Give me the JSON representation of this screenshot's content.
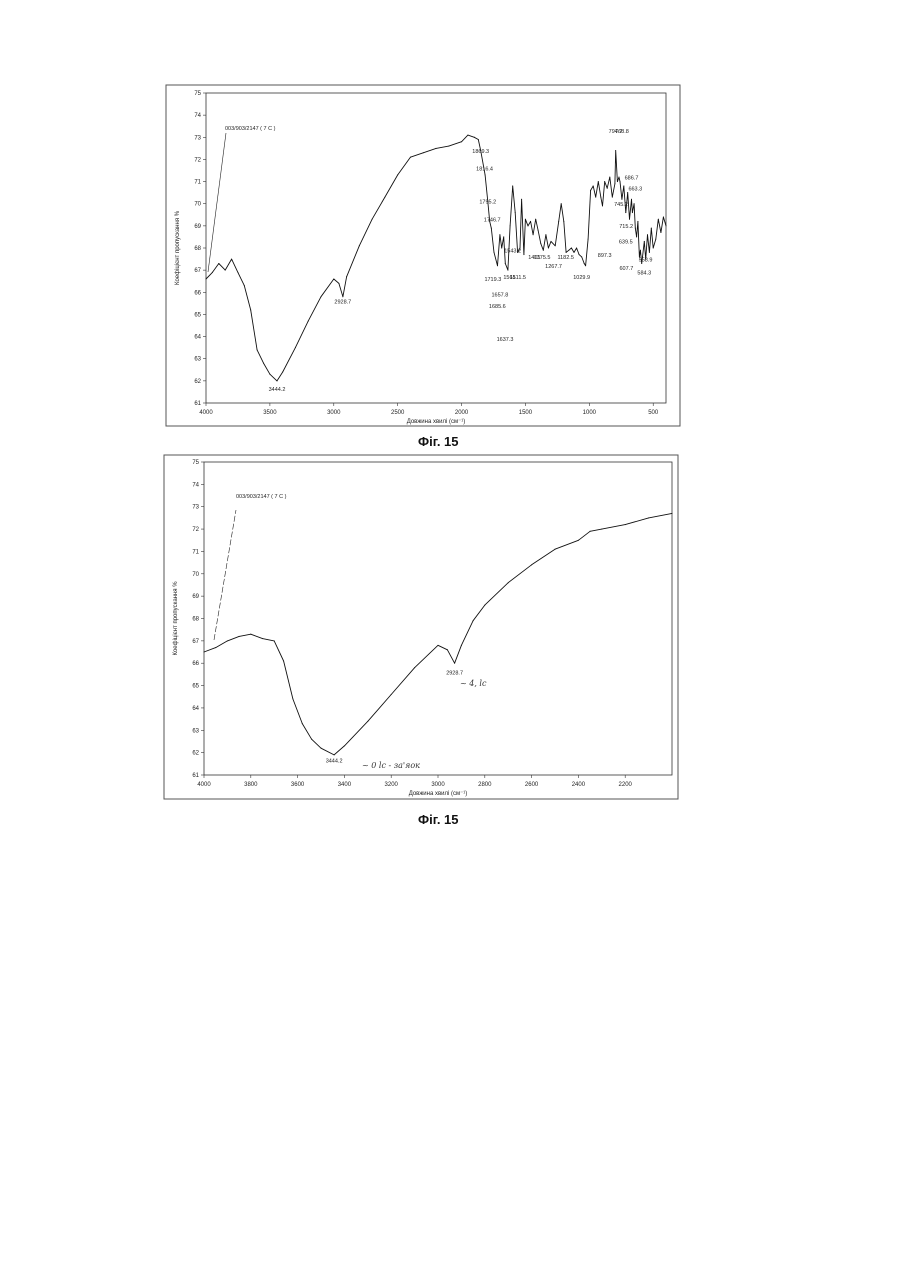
{
  "figures": [
    {
      "caption": "Фіг. 15",
      "sample_label": "003/903/2147 ( 7 C )",
      "ylabel": "Коефіцієнт пропускання %",
      "xlabel": "Довжина хвилі (см⁻¹)",
      "handwritten": []
    },
    {
      "caption": "Фіг. 15",
      "sample_label": "003/903/2147 ( 7 C )",
      "ylabel": "Коефіцієнт пропускання %",
      "xlabel": "Довжина хвилі (см⁻¹)",
      "handwritten": [
        "~ 0 lc - за'яок",
        "~ 4, lc"
      ]
    }
  ],
  "chart_data": [
    {
      "type": "line",
      "title": "",
      "xlabel": "Довжина хвилі (см⁻¹)",
      "ylabel": "Коефіцієнт пропускання %",
      "xlim": [
        4000,
        400
      ],
      "ylim": [
        61,
        75
      ],
      "x_ticks": [
        4000,
        3500,
        3000,
        2500,
        2000,
        1500,
        1000,
        500
      ],
      "y_ticks": [
        61,
        62,
        63,
        64,
        65,
        66,
        67,
        68,
        69,
        70,
        71,
        72,
        73,
        74,
        75
      ],
      "grid": false,
      "series": [
        {
          "x": [
            4000,
            3950,
            3900,
            3850,
            3800,
            3750,
            3700,
            3650,
            3600,
            3550,
            3500,
            3444,
            3400,
            3300,
            3200,
            3100,
            3000,
            2960,
            2929,
            2900,
            2800,
            2700,
            2600,
            2500,
            2400,
            2300,
            2200,
            2100,
            2000,
            1950,
            1900,
            1869,
            1850,
            1816,
            1795,
            1780,
            1767,
            1746,
            1719,
            1700,
            1686,
            1670,
            1658,
            1637,
            1620,
            1600,
            1580,
            1561,
            1543,
            1530,
            1512,
            1500,
            1480,
            1460,
            1440,
            1420,
            1401,
            1380,
            1360,
            1340,
            1320,
            1300,
            1267,
            1240,
            1220,
            1200,
            1182,
            1160,
            1140,
            1120,
            1100,
            1080,
            1060,
            1040,
            1029,
            1010,
            990,
            970,
            950,
            930,
            910,
            897,
            880,
            860,
            840,
            820,
            800,
            794,
            780,
            768,
            760,
            745,
            730,
            715,
            700,
            686,
            670,
            663,
            650,
            640,
            630,
            620,
            608,
            600,
            590,
            584,
            570,
            559,
            545,
            530,
            515,
            500,
            480,
            460,
            440,
            420,
            400
          ],
          "y": [
            66.6,
            66.9,
            67.3,
            67.0,
            67.5,
            66.9,
            66.3,
            65.2,
            63.4,
            62.8,
            62.3,
            62.0,
            62.4,
            63.5,
            64.7,
            65.8,
            66.6,
            66.4,
            65.8,
            66.7,
            68.1,
            69.3,
            70.3,
            71.3,
            72.1,
            72.3,
            72.5,
            72.6,
            72.8,
            73.1,
            73.0,
            72.9,
            72.4,
            71.3,
            70.1,
            69.2,
            68.9,
            67.8,
            67.2,
            68.6,
            68.0,
            68.5,
            67.3,
            67.0,
            69.0,
            70.8,
            69.6,
            67.8,
            68.0,
            70.2,
            67.7,
            69.3,
            69.0,
            69.2,
            68.6,
            69.3,
            68.8,
            68.2,
            67.9,
            68.6,
            68.0,
            68.3,
            68.1,
            69.2,
            70.0,
            69.2,
            67.8,
            67.9,
            68.0,
            67.8,
            68.0,
            67.7,
            67.6,
            67.3,
            67.2,
            68.4,
            70.6,
            70.8,
            70.3,
            71.0,
            70.3,
            69.9,
            71.0,
            70.7,
            71.2,
            70.3,
            70.9,
            72.4,
            71.0,
            71.2,
            71.0,
            70.2,
            70.8,
            69.6,
            70.5,
            69.3,
            70.2,
            69.6,
            70.0,
            68.9,
            68.5,
            69.2,
            67.6,
            67.9,
            67.3,
            67.6,
            68.3,
            67.5,
            68.6,
            67.8,
            68.9,
            68.0,
            68.4,
            69.3,
            68.7,
            69.4,
            69.0
          ]
        }
      ],
      "annotations": [
        "3444.2",
        "2928.7",
        "1869.3",
        "1816.4",
        "1795.2",
        "1746.7",
        "1719.3",
        "1685.6",
        "1657.8",
        "1637.3",
        "1561",
        "1543.2",
        "1511.5",
        "1401",
        "1375.5",
        "1267.7",
        "1182.5",
        "1029.9",
        "897.3",
        "794.7",
        "768.8",
        "745.2",
        "715.2",
        "686.7",
        "663.3",
        "639.5",
        "607.7",
        "558.9",
        "584.3"
      ]
    },
    {
      "type": "line",
      "title": "",
      "xlabel": "Довжина хвилі (см⁻¹)",
      "ylabel": "Коефіцієнт пропускання %",
      "xlim": [
        4000,
        2000
      ],
      "ylim": [
        61,
        75
      ],
      "x_ticks": [
        4000,
        3800,
        3600,
        3400,
        3200,
        3000,
        2800,
        2600,
        2400,
        2200
      ],
      "y_ticks": [
        61,
        62,
        63,
        64,
        65,
        66,
        67,
        68,
        69,
        70,
        71,
        72,
        73,
        74,
        75
      ],
      "grid": false,
      "series": [
        {
          "x": [
            4000,
            3950,
            3900,
            3850,
            3800,
            3750,
            3700,
            3660,
            3620,
            3580,
            3540,
            3500,
            3444,
            3400,
            3300,
            3200,
            3100,
            3000,
            2960,
            2929,
            2900,
            2850,
            2800,
            2700,
            2600,
            2500,
            2400,
            2350,
            2300,
            2200,
            2100,
            2000
          ],
          "y": [
            66.5,
            66.7,
            67.0,
            67.2,
            67.3,
            67.1,
            67.0,
            66.1,
            64.4,
            63.3,
            62.6,
            62.2,
            61.9,
            62.3,
            63.4,
            64.6,
            65.8,
            66.8,
            66.6,
            66.0,
            66.8,
            67.9,
            68.6,
            69.6,
            70.4,
            71.1,
            71.5,
            71.9,
            72.0,
            72.2,
            72.5,
            72.7
          ]
        }
      ],
      "annotations": [
        "3444.2",
        "2928.7"
      ]
    }
  ]
}
